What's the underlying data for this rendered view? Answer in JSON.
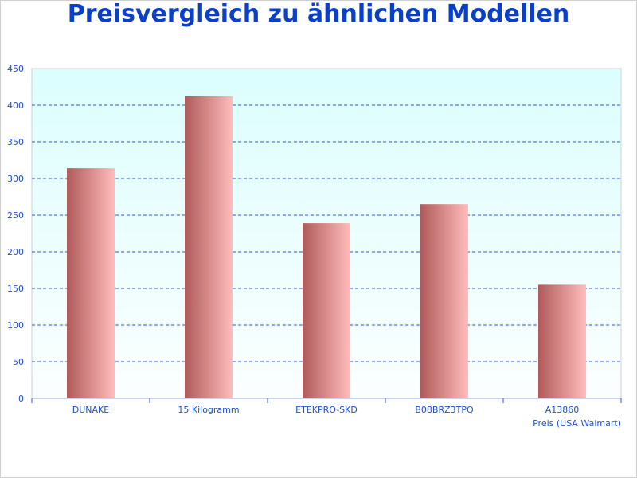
{
  "chart_data": {
    "type": "bar",
    "title": "Preisvergleich zu ähnlichen Modellen",
    "categories": [
      "DUNAKE",
      "15 Kilogramm",
      "ETEKPRO-SKD",
      "B08BRZ3TPQ",
      "A13860"
    ],
    "series": [
      {
        "name": "Preis (USA Walmart)",
        "values": [
          314,
          412,
          239,
          265,
          155
        ]
      }
    ],
    "xlabel": "",
    "ylabel": "",
    "ylim": [
      0,
      450
    ],
    "yticks": [
      0,
      50,
      100,
      150,
      200,
      250,
      300,
      350,
      400,
      450
    ],
    "grid": true,
    "legend": "bottom-right",
    "colors": {
      "bar_dark": "#b05a5a",
      "bar_light": "#ffbcbc",
      "plot_bg_top": "#dcfefe",
      "plot_bg_bottom": "#fbfefe",
      "grid": "#2a55d0",
      "text": "#1f4fcf",
      "title": "#0a3fc8"
    }
  }
}
